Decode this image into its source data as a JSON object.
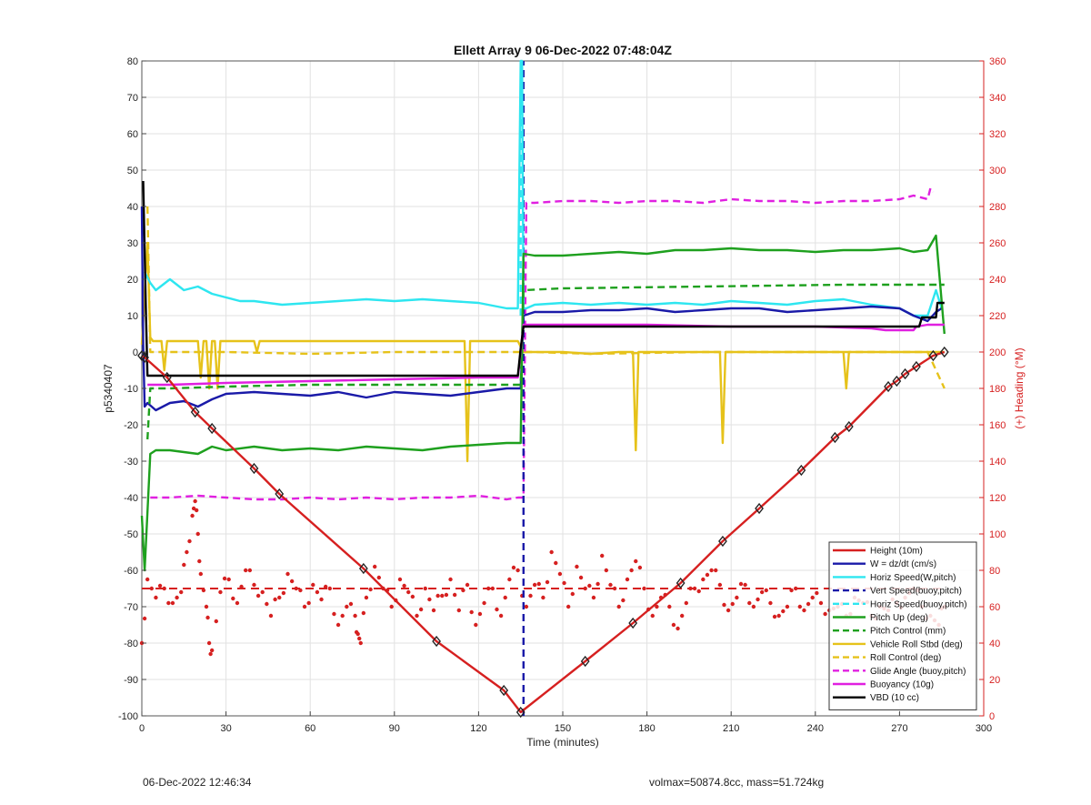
{
  "footer": {
    "timestamp": "06-Dec-2022 12:46:34",
    "summary": "volmax=50874.8cc, mass=51.724kg"
  },
  "chart_data": {
    "type": "line",
    "title": "Ellett Array 9 06-Dec-2022 07:48:04Z",
    "xlabel": "Time (minutes)",
    "ylabel": "p5340407",
    "y2label": "(+) Heading (°M)",
    "xlim": [
      0,
      300
    ],
    "ylim": [
      -100,
      80
    ],
    "y2lim": [
      0,
      360
    ],
    "xticks": [
      0,
      30,
      60,
      90,
      120,
      150,
      180,
      210,
      240,
      270,
      300
    ],
    "yticks": [
      -100,
      -90,
      -80,
      -70,
      -60,
      -50,
      -40,
      -30,
      -20,
      -10,
      0,
      10,
      20,
      30,
      40,
      50,
      60,
      70,
      80
    ],
    "y2ticks": [
      0,
      20,
      40,
      60,
      80,
      100,
      120,
      140,
      160,
      180,
      200,
      220,
      240,
      260,
      280,
      300,
      320,
      340,
      360
    ],
    "grid": true,
    "legend_position": "bottom-right",
    "colors": {
      "height": "#d62020",
      "w": "#1a1aa8",
      "horiz": "#2ee6f0",
      "pitch": "#1ea01e",
      "roll": "#e6c21a",
      "glide": "#e020e0",
      "buoy": "#e020e0",
      "vbd": "#000000",
      "right_axis": "#d62020"
    },
    "series": [
      {
        "name": "Height (10m)",
        "color": "#d62020",
        "style": "solid",
        "marker": "diamond",
        "x": [
          0,
          1,
          9,
          19,
          25,
          40,
          49,
          79,
          105,
          129,
          135,
          158,
          175,
          192,
          207,
          220,
          235,
          247,
          252,
          266,
          269,
          272,
          276,
          282,
          286
        ],
        "y": [
          -1,
          -1.5,
          -7,
          -16.5,
          -21,
          -32,
          -39,
          -59.5,
          -79.5,
          -93,
          -99,
          -85,
          -74.5,
          -63.5,
          -52,
          -43,
          -32.5,
          -23.5,
          -20.5,
          -9.5,
          -8,
          -6,
          -4,
          -1,
          0
        ]
      },
      {
        "name": "W = dz/dt (cm/s)",
        "color": "#1a1aa8",
        "style": "solid",
        "x": [
          0,
          0.5,
          1,
          2,
          5,
          10,
          15,
          20,
          25,
          30,
          40,
          50,
          60,
          70,
          80,
          90,
          100,
          110,
          120,
          130,
          135,
          136,
          140,
          150,
          160,
          170,
          180,
          190,
          200,
          210,
          220,
          230,
          240,
          250,
          260,
          270,
          275,
          280,
          283,
          285
        ],
        "y": [
          40,
          2,
          -15,
          -14,
          -16,
          -14,
          -13.5,
          -15,
          -13,
          -11.5,
          -11,
          -11.5,
          -12,
          -11,
          -12.5,
          -11,
          -11.5,
          -12,
          -11,
          -10,
          -10,
          10,
          11,
          11,
          11.5,
          11.5,
          12,
          11,
          11.5,
          12,
          12,
          11,
          11.5,
          12,
          12.5,
          12,
          10,
          8.5,
          11,
          12
        ]
      },
      {
        "name": "Horiz Speed(W,pitch)",
        "color": "#2ee6f0",
        "style": "solid",
        "x": [
          1,
          3,
          5,
          10,
          15,
          20,
          25,
          30,
          35,
          40,
          50,
          60,
          70,
          80,
          90,
          100,
          110,
          120,
          130,
          134,
          135,
          135.5,
          136,
          137,
          140,
          150,
          160,
          170,
          180,
          190,
          200,
          210,
          220,
          230,
          240,
          250,
          260,
          270,
          275,
          280,
          283,
          285
        ],
        "y": [
          22,
          19,
          17,
          20,
          17,
          18,
          16,
          15,
          14,
          14,
          13,
          13.5,
          14,
          14.5,
          14,
          14.5,
          14,
          13.5,
          12,
          12,
          80,
          80,
          12,
          12,
          13,
          13.5,
          13,
          13.5,
          13,
          13.5,
          13,
          14,
          13.5,
          13,
          14,
          14.5,
          13,
          12,
          10,
          10,
          17,
          12
        ]
      },
      {
        "name": "Vert Speed(buoy,pitch)",
        "color": "#1a1aa8",
        "style": "dashed",
        "x": [
          136,
          136.001
        ],
        "y": [
          -100,
          80
        ]
      },
      {
        "name": "Horiz Speed(buoy,pitch)",
        "color": "#2ee6f0",
        "style": "dashed",
        "x": [
          135,
          135.001
        ],
        "y": [
          10,
          80
        ]
      },
      {
        "name": "Pitch Up (deg)",
        "color": "#1ea01e",
        "style": "solid",
        "x": [
          0,
          1,
          3,
          5,
          10,
          20,
          25,
          30,
          40,
          50,
          60,
          70,
          80,
          90,
          100,
          110,
          120,
          130,
          134,
          135,
          136,
          140,
          150,
          160,
          170,
          180,
          190,
          200,
          210,
          220,
          230,
          240,
          250,
          260,
          270,
          275,
          280,
          283,
          286
        ],
        "y": [
          -45,
          -60,
          -28,
          -27,
          -27,
          -28,
          -26,
          -27,
          -26,
          -27,
          -26.5,
          -27,
          -26,
          -26.5,
          -27,
          -26,
          -25.5,
          -25,
          -25,
          -25,
          27,
          26.5,
          26.5,
          27,
          27.5,
          27,
          28,
          28,
          28.5,
          28,
          28,
          27.5,
          28,
          28,
          28.5,
          27.5,
          28,
          32,
          5
        ]
      },
      {
        "name": "Pitch Control (mm)",
        "color": "#1ea01e",
        "style": "dashed",
        "x": [
          2,
          3,
          10,
          30,
          60,
          100,
          130,
          135,
          136,
          150,
          200,
          250,
          280,
          286
        ],
        "y": [
          -24,
          -10,
          -10,
          -9.5,
          -9,
          -9,
          -9,
          -9,
          17,
          17.5,
          18,
          18.5,
          18.5,
          18.5
        ]
      },
      {
        "name": "Vehicle Roll Stbd (deg)",
        "color": "#e6c21a",
        "style": "solid",
        "x": [
          0,
          2,
          3,
          4,
          7,
          8,
          9,
          10,
          12,
          20,
          21,
          22,
          23,
          24,
          25,
          26,
          27,
          28,
          30,
          35,
          40,
          41,
          42,
          45,
          50,
          55,
          60,
          70,
          80,
          90,
          100,
          110,
          115,
          116,
          117,
          118,
          120,
          130,
          134,
          136,
          140,
          150,
          160,
          170,
          175,
          176,
          177,
          178,
          180,
          190,
          200,
          206,
          207,
          208,
          209,
          210,
          220,
          230,
          240,
          250,
          251,
          252,
          253,
          255,
          260,
          270,
          280,
          284,
          286
        ],
        "y": [
          2,
          30,
          4,
          3,
          3,
          -5,
          3,
          3,
          3,
          3,
          -7,
          3,
          3,
          -10,
          3,
          3,
          -10,
          3,
          3,
          3,
          3,
          0,
          3,
          3,
          3,
          3,
          3,
          3,
          3,
          3,
          3,
          3,
          3,
          -30,
          3,
          3,
          3,
          3,
          3,
          0,
          0,
          0,
          -0.5,
          0,
          0,
          -27,
          0,
          0,
          0,
          0,
          0,
          0,
          -25,
          0,
          0,
          0,
          0,
          0,
          0,
          0,
          -10,
          0,
          0,
          0,
          0,
          0,
          0,
          0,
          0
        ]
      },
      {
        "name": "Roll Control (deg)",
        "color": "#e6c21a",
        "style": "dashed",
        "x": [
          2,
          3,
          5,
          10,
          30,
          60,
          90,
          120,
          134,
          136,
          140,
          160,
          200,
          240,
          270,
          280,
          286
        ],
        "y": [
          40,
          0,
          0,
          0,
          0,
          -0.5,
          0,
          0,
          0,
          0,
          0,
          -0.5,
          0,
          0,
          0,
          0,
          -10
        ]
      },
      {
        "name": "Glide Angle (buoy,pitch)",
        "color": "#e020e0",
        "style": "dashed",
        "x": [
          3,
          10,
          20,
          30,
          40,
          50,
          60,
          70,
          80,
          90,
          100,
          110,
          120,
          130,
          134,
          136,
          137,
          140,
          150,
          160,
          170,
          180,
          190,
          200,
          210,
          220,
          230,
          240,
          250,
          260,
          270,
          275,
          280,
          281,
          282
        ],
        "y": [
          -40,
          -40,
          -39.5,
          -40,
          -40.5,
          -40.5,
          -40,
          -40.5,
          -40,
          -40.5,
          -40,
          -40,
          -39.5,
          -40.5,
          -40,
          -40,
          41,
          41,
          41.5,
          41.5,
          41,
          41.5,
          41.5,
          41,
          42,
          41.5,
          41.5,
          41,
          41.5,
          41.5,
          42,
          43,
          42,
          45,
          44
        ]
      },
      {
        "name": "Buoyancy (10g)",
        "color": "#e020e0",
        "style": "solid",
        "x": [
          2,
          10,
          30,
          60,
          90,
          120,
          134,
          136,
          150,
          180,
          210,
          240,
          260,
          265,
          270,
          275,
          276,
          280,
          286
        ],
        "y": [
          -9,
          -9,
          -8.5,
          -8,
          -7.5,
          -7,
          -7,
          7.5,
          7.5,
          7.5,
          7,
          7,
          6.5,
          6,
          6,
          6,
          7,
          7.5,
          7.5
        ]
      },
      {
        "name": "VBD (10 cc)",
        "color": "#000000",
        "style": "solid",
        "x": [
          0.5,
          1.5,
          2,
          3,
          50,
          100,
          134,
          135,
          136,
          200,
          277,
          278,
          283,
          283.5,
          286
        ],
        "y": [
          47,
          10,
          -6.5,
          -6.5,
          -6.5,
          -6.5,
          -6.5,
          1,
          7,
          7,
          7,
          9.5,
          9.5,
          13.5,
          13.5
        ]
      }
    ],
    "heading": {
      "name": "(+) Heading (°M)",
      "axis": "right",
      "color": "#d62020",
      "mean": 70,
      "x": [
        0,
        2,
        5,
        8,
        11,
        14,
        16,
        18,
        19,
        20,
        21,
        23,
        24,
        25,
        28,
        31,
        34,
        37,
        40,
        43,
        46,
        49,
        52,
        55,
        58,
        61,
        64,
        67,
        70,
        73,
        76,
        77,
        78,
        80,
        83,
        86,
        89,
        92,
        95,
        98,
        101,
        104,
        107,
        110,
        113,
        116,
        119,
        122,
        125,
        128,
        131,
        134,
        137,
        140,
        143,
        146,
        149,
        152,
        155,
        158,
        161,
        164,
        167,
        170,
        173,
        176,
        179,
        182,
        185,
        188,
        191,
        194,
        197,
        200,
        203,
        206,
        209,
        212,
        215,
        218,
        221,
        224,
        227,
        230,
        233,
        236,
        239,
        242,
        245,
        248,
        251,
        254,
        257,
        260,
        263,
        266,
        269,
        272,
        275,
        278,
        281,
        284,
        286
      ],
      "y": [
        40,
        75,
        65,
        70,
        62,
        68,
        90,
        110,
        118,
        100,
        78,
        60,
        40,
        36,
        68,
        75,
        62,
        80,
        72,
        68,
        55,
        65,
        78,
        70,
        60,
        72,
        64,
        70,
        50,
        60,
        55,
        45,
        40,
        65,
        82,
        70,
        60,
        75,
        68,
        55,
        70,
        58,
        66,
        75,
        58,
        72,
        50,
        62,
        70,
        55,
        75,
        80,
        60,
        72,
        65,
        90,
        78,
        60,
        82,
        70,
        65,
        88,
        72,
        60,
        75,
        85,
        70,
        55,
        65,
        60,
        48,
        62,
        70,
        75,
        80,
        72,
        58,
        65,
        72,
        60,
        68,
        62,
        55,
        60,
        70,
        58,
        65,
        62,
        58,
        60,
        55,
        65,
        62,
        55,
        60,
        58,
        62,
        65,
        70,
        60,
        55,
        50,
        60
      ]
    }
  }
}
